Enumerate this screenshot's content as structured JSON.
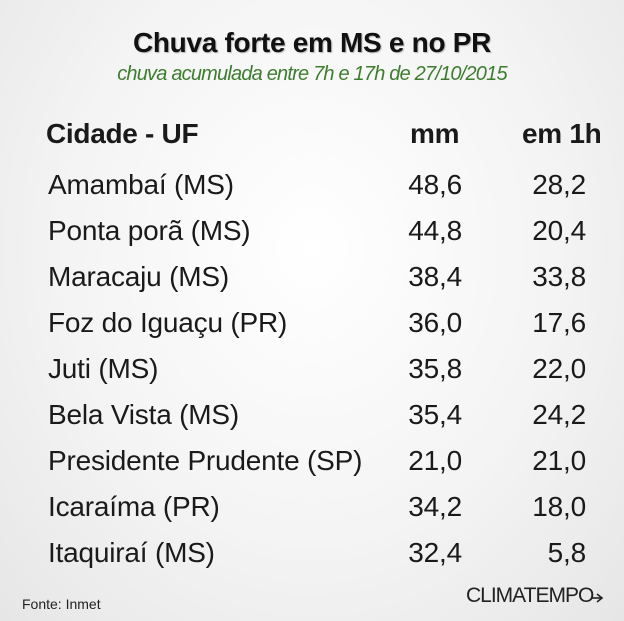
{
  "title": "Chuva forte em MS e no PR",
  "subtitle": "chuva acumulada entre 7h e 17h de 27/10/2015",
  "columns": {
    "city": "Cidade - UF",
    "mm": "mm",
    "h1": "em 1h"
  },
  "rows": [
    {
      "city": "Amambaí (MS)",
      "mm": "48,6",
      "h1": "28,2"
    },
    {
      "city": "Ponta porã (MS)",
      "mm": "44,8",
      "h1": "20,4"
    },
    {
      "city": "Maracaju (MS)",
      "mm": "38,4",
      "h1": "33,8"
    },
    {
      "city": "Foz do Iguaçu (PR)",
      "mm": "36,0",
      "h1": "17,6"
    },
    {
      "city": "Juti (MS)",
      "mm": "35,8",
      "h1": "22,0"
    },
    {
      "city": "Bela Vista (MS)",
      "mm": "35,4",
      "h1": "24,2"
    },
    {
      "city": "Presidente Prudente (SP)",
      "mm": "21,0",
      "h1": "21,0"
    },
    {
      "city": "Icaraíma (PR)",
      "mm": "34,2",
      "h1": "18,0"
    },
    {
      "city": "Itaquiraí (MS)",
      "mm": "32,4",
      "h1": "5,8"
    }
  ],
  "source": "Fonte: Inmet",
  "logo": "CLIMATEMPO",
  "colors": {
    "subtitle": "#3c7d2e",
    "text": "#1a1a1a"
  }
}
